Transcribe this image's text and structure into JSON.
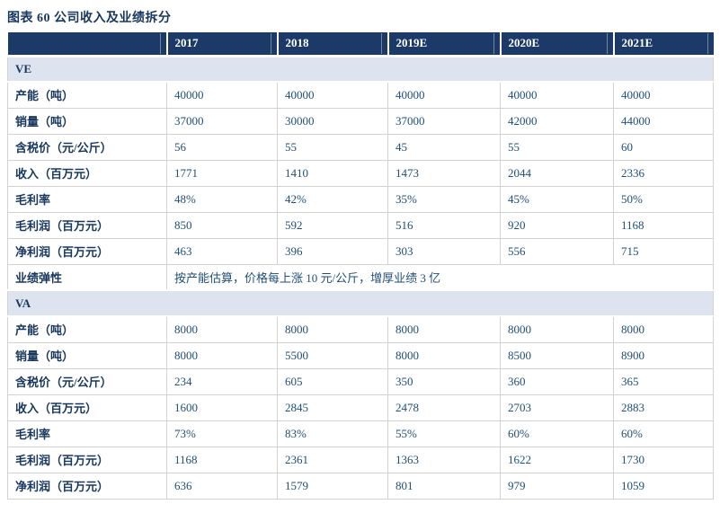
{
  "exhibit": {
    "title": "图表 60 公司收入及业绩拆分"
  },
  "table": {
    "columns": [
      "",
      "2017",
      "2018",
      "2019E",
      "2020E",
      "2021E"
    ],
    "sections": [
      {
        "name": "VE",
        "rows": [
          {
            "label": "产能（吨）",
            "values": [
              "40000",
              "40000",
              "40000",
              "40000",
              "40000"
            ]
          },
          {
            "label": "销量（吨）",
            "values": [
              "37000",
              "30000",
              "37000",
              "42000",
              "44000"
            ]
          },
          {
            "label": "含税价（元/公斤）",
            "values": [
              "56",
              "55",
              "45",
              "55",
              "60"
            ]
          },
          {
            "label": "收入（百万元）",
            "values": [
              "1771",
              "1410",
              "1473",
              "2044",
              "2336"
            ]
          },
          {
            "label": "毛利率",
            "values": [
              "48%",
              "42%",
              "35%",
              "45%",
              "50%"
            ]
          },
          {
            "label": "毛利润（百万元）",
            "values": [
              "850",
              "592",
              "516",
              "920",
              "1168"
            ]
          },
          {
            "label": "净利润（百万元）",
            "values": [
              "463",
              "396",
              "303",
              "556",
              "715"
            ]
          },
          {
            "label": "业绩弹性",
            "note": "按产能估算，价格每上涨 10 元/公斤，增厚业绩 3 亿"
          }
        ]
      },
      {
        "name": "VA",
        "rows": [
          {
            "label": "产能（吨）",
            "values": [
              "8000",
              "8000",
              "8000",
              "8000",
              "8000"
            ]
          },
          {
            "label": "销量（吨）",
            "values": [
              "8000",
              "5500",
              "8000",
              "8500",
              "8900"
            ]
          },
          {
            "label": "含税价（元/公斤）",
            "values": [
              "234",
              "605",
              "350",
              "360",
              "365"
            ]
          },
          {
            "label": "收入（百万元）",
            "values": [
              "1600",
              "2845",
              "2478",
              "2703",
              "2883"
            ]
          },
          {
            "label": "毛利率",
            "values": [
              "73%",
              "83%",
              "55%",
              "60%",
              "60%"
            ]
          },
          {
            "label": "毛利润（百万元）",
            "values": [
              "1168",
              "2361",
              "1363",
              "1622",
              "1730"
            ]
          },
          {
            "label": "净利润（百万元）",
            "values": [
              "636",
              "1579",
              "801",
              "979",
              "1059"
            ]
          }
        ]
      }
    ]
  },
  "colors": {
    "header_bg": "#1B3A68",
    "header_text": "#FFFFFF",
    "section_bg": "#DEE3F0",
    "label_text": "#17375E",
    "value_text": "#1F4E79",
    "grid_border": "#D2D2D2",
    "title_text": "#17375E"
  }
}
